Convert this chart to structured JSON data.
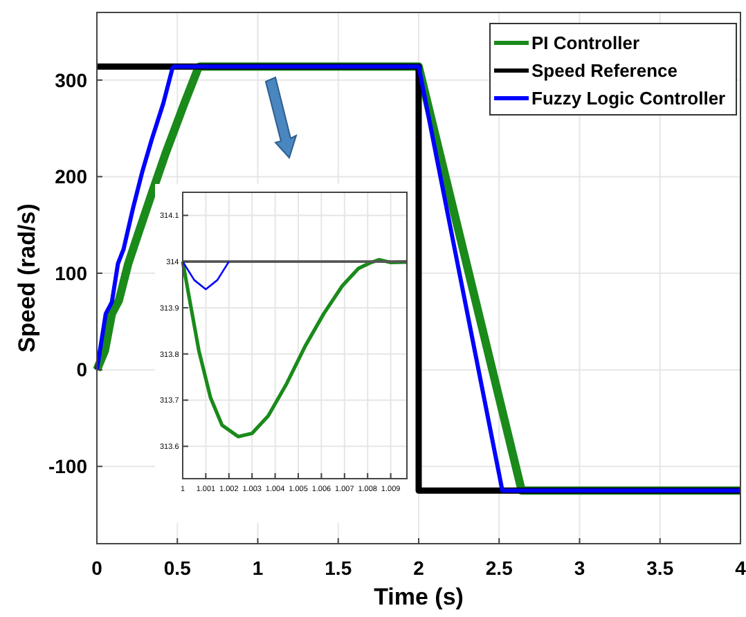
{
  "chart_data": [
    {
      "type": "line",
      "xlabel": "Time (s)",
      "ylabel": "Speed (rad/s)",
      "xlim": [
        0,
        4
      ],
      "ylim": [
        -180,
        370
      ],
      "xticks": [
        0,
        0.5,
        1,
        1.5,
        2,
        2.5,
        3,
        3.5,
        4
      ],
      "yticks": [
        -100,
        0,
        100,
        200,
        300
      ],
      "grid": true,
      "legend": "top right",
      "series": [
        {
          "name": "PI Controller",
          "color": "#1a8a1a",
          "x": [
            0,
            0.05,
            0.093,
            0.137,
            0.195,
            0.253,
            0.34,
            0.427,
            0.544,
            0.631,
            0.64,
            2,
            2.64,
            4
          ],
          "values": [
            0,
            20,
            58,
            72,
            110,
            139,
            182,
            224,
            276,
            313,
            314,
            314,
            -125,
            -125
          ]
        },
        {
          "name": "Speed Reference",
          "color": "#000000",
          "x": [
            0,
            2,
            2,
            4
          ],
          "values": [
            314,
            314,
            -125,
            -125
          ]
        },
        {
          "name": "Fuzzy Logic Controller",
          "color": "#0000ff",
          "x": [
            0,
            0.055,
            0.093,
            0.131,
            0.166,
            0.224,
            0.282,
            0.34,
            0.413,
            0.471,
            0.48,
            2,
            2.52,
            4
          ],
          "values": [
            0,
            58,
            70,
            110,
            125,
            167,
            205,
            238,
            276,
            313,
            314,
            314,
            -125,
            -125
          ]
        }
      ]
    },
    {
      "type": "line",
      "xlim": [
        1,
        1.0097
      ],
      "ylim": [
        313.53,
        314.15
      ],
      "xticks": [
        1,
        1.001,
        1.002,
        1.003,
        1.004,
        1.005,
        1.006,
        1.007,
        1.008,
        1.009
      ],
      "yticks": [
        313.6,
        313.7,
        313.8,
        313.9,
        314,
        314.1
      ],
      "grid": true,
      "series": [
        {
          "color": "#1a8a1a",
          "x": [
            1,
            1.0003,
            1.0007,
            1.0012,
            1.0017,
            1.0024,
            1.003,
            1.0037,
            1.0045,
            1.0053,
            1.0061,
            1.0069,
            1.0076,
            1.0081,
            1.0085,
            1.009,
            1.0097
          ],
          "values": [
            314,
            313.917,
            313.807,
            313.706,
            313.646,
            313.621,
            313.628,
            313.666,
            313.736,
            313.817,
            313.887,
            313.947,
            313.985,
            313.997,
            314.004,
            313.998,
            313.999
          ]
        },
        {
          "color": "#555555",
          "x": [
            1,
            1.0097
          ],
          "values": [
            314,
            314
          ]
        },
        {
          "color": "#0000ff",
          "x": [
            1,
            1.0005,
            1.001,
            1.0015,
            1.002
          ],
          "values": [
            314,
            313.96,
            313.94,
            313.96,
            314
          ]
        }
      ]
    }
  ]
}
